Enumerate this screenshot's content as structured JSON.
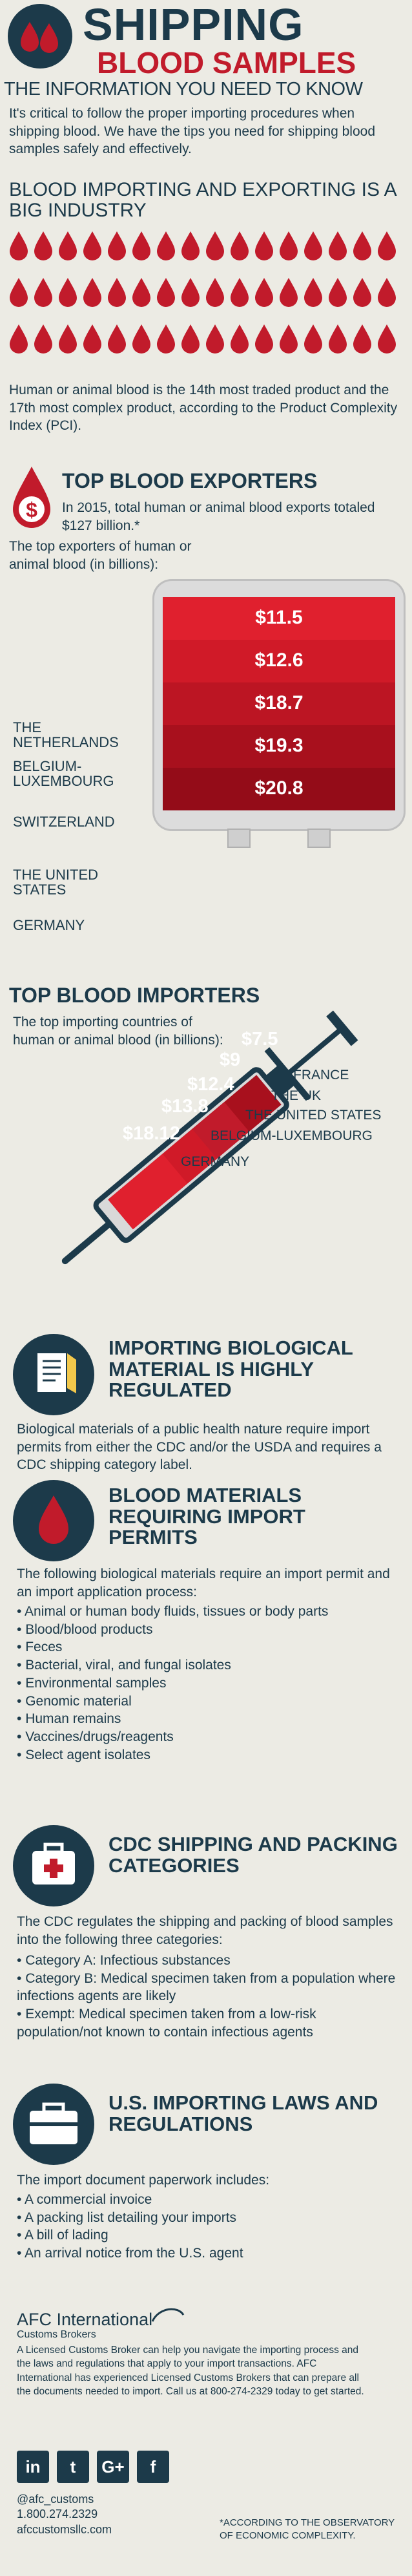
{
  "header": {
    "title_line1": "SHIPPING",
    "title_line2": "BLOOD SAMPLES",
    "subtitle": "THE INFORMATION YOU NEED TO KNOW"
  },
  "intro": {
    "text": "It's critical to follow the proper importing procedures when shipping blood. We have the tips you need for shipping blood samples safely and effectively."
  },
  "industry": {
    "heading": "BLOOD IMPORTING AND EXPORTING IS A BIG INDUSTRY",
    "text": "Human or animal blood is the 14th most traded product and the 17th most complex product, according to the Product Complexity Index (PCI)."
  },
  "exporters": {
    "heading": "TOP BLOOD EXPORTERS",
    "stat": "In 2015, total human or animal blood exports totaled $127 billion.*",
    "caption": "The top exporters of human or animal blood (in billions):",
    "items": [
      {
        "country": "THE NETHERLANDS",
        "value": "$11.5",
        "color": "#e0202e"
      },
      {
        "country": "BELGIUM-LUXEMBOURG",
        "value": "$12.6",
        "color": "#d01a28"
      },
      {
        "country": "SWITZERLAND",
        "value": "$18.7",
        "color": "#bc1523"
      },
      {
        "country": "THE UNITED STATES",
        "value": "$19.3",
        "color": "#a8101d"
      },
      {
        "country": "GERMANY",
        "value": "$20.8",
        "color": "#940c18"
      }
    ]
  },
  "importers": {
    "heading": "TOP BLOOD IMPORTERS",
    "caption": "The top importing countries of human or animal blood (in billions):",
    "items": [
      {
        "country": "FRANCE",
        "value": "$7.5"
      },
      {
        "country": "THE UK",
        "value": "$9"
      },
      {
        "country": "THE UNITED STATES",
        "value": "$12.4"
      },
      {
        "country": "BELGIUM-LUXEMBOURG",
        "value": "$13.8"
      },
      {
        "country": "GERMANY",
        "value": "$18.12"
      }
    ]
  },
  "regulated": {
    "heading": "IMPORTING BIOLOGICAL MATERIAL IS HIGHLY REGULATED",
    "text": "Biological materials of a public health nature require import permits from either the CDC and/or the USDA and requires a CDC shipping category label."
  },
  "permits": {
    "heading": "BLOOD MATERIALS REQUIRING IMPORT PERMITS",
    "intro": "The following biological materials require an import permit and an import application process:",
    "items": [
      "Animal or human body fluids, tissues or body parts",
      "Blood/blood products",
      "Feces",
      "Bacterial, viral, and fungal isolates",
      "Environmental samples",
      "Genomic material",
      "Human remains",
      "Vaccines/drugs/reagents",
      "Select agent isolates"
    ]
  },
  "cdc": {
    "heading": "CDC SHIPPING AND PACKING CATEGORIES",
    "intro": "The CDC regulates the shipping and packing of blood samples into the following three categories:",
    "items": [
      "Category A: Infectious substances",
      "Category B: Medical specimen taken from a population where infections agents are likely",
      "Exempt: Medical specimen taken from a low-risk population/not known to contain infectious agents"
    ]
  },
  "laws": {
    "heading": "U.S. IMPORTING LAWS AND REGULATIONS",
    "intro": "The import document paperwork includes:",
    "items": [
      "A commercial invoice",
      "A packing list detailing your imports",
      "A bill of lading",
      "An arrival notice from the U.S. agent"
    ]
  },
  "footer": {
    "brand": "AFC International",
    "brand_sub": "Customs Brokers",
    "text": "A Licensed Customs Broker can help you navigate the importing process and the laws and regulations that apply to your import transactions. AFC International has experienced Licensed Customs Brokers that can prepare all the documents needed to import. Call us at 800-274-2329 today to get started.",
    "handle": "@afc_customs",
    "phone": "1.800.274.2329",
    "website": "afccustomsllc.com",
    "note": "*ACCORDING TO THE OBSERVATORY OF ECONOMIC COMPLEXITY.",
    "social": [
      "in",
      "t",
      "G+",
      "f"
    ]
  },
  "colors": {
    "navy": "#1c3a4a",
    "red": "#c11b2b",
    "background": "#ecebe4"
  }
}
